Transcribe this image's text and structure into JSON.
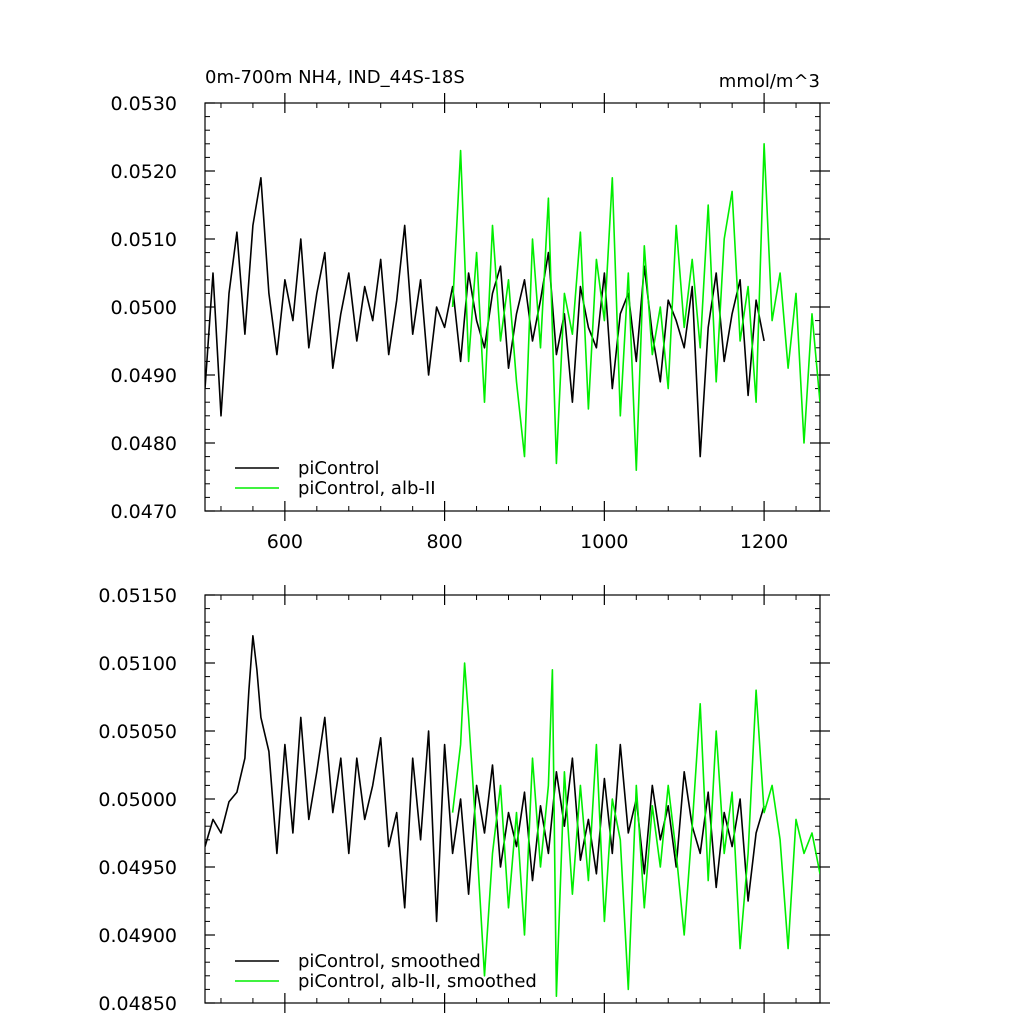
{
  "chart_data": [
    {
      "type": "line",
      "title": "0m-700m NH4, IND_44S-18S",
      "units": "mmol/m^3",
      "xlim": [
        500,
        1270
      ],
      "ylim": [
        0.047,
        0.053
      ],
      "xticks": [
        600,
        800,
        1000,
        1200
      ],
      "xtick_labels": [
        "600",
        "800",
        "1000",
        "1200"
      ],
      "yticks": [
        0.047,
        0.048,
        0.049,
        0.05,
        0.051,
        0.052,
        0.053
      ],
      "ytick_labels": [
        "0.0470",
        "0.0480",
        "0.0490",
        "0.0500",
        "0.0510",
        "0.0520",
        "0.0530"
      ],
      "legend_position": "bottom-left",
      "series": [
        {
          "name": "piControl",
          "color": "#000000",
          "x": [
            500,
            510,
            520,
            530,
            540,
            550,
            560,
            570,
            580,
            590,
            600,
            610,
            620,
            630,
            640,
            650,
            660,
            670,
            680,
            690,
            700,
            710,
            720,
            730,
            740,
            750,
            760,
            770,
            780,
            790,
            800,
            810,
            820,
            830,
            840,
            850,
            860,
            870,
            880,
            890,
            900,
            910,
            920,
            930,
            940,
            950,
            960,
            970,
            980,
            990,
            1000,
            1010,
            1020,
            1030,
            1040,
            1050,
            1060,
            1070,
            1080,
            1090,
            1100,
            1110,
            1120,
            1130,
            1140,
            1150,
            1160,
            1170,
            1180,
            1190,
            1200
          ],
          "y": [
            0.0488,
            0.0505,
            0.0484,
            0.0502,
            0.0511,
            0.0496,
            0.0512,
            0.0519,
            0.0502,
            0.0493,
            0.0504,
            0.0498,
            0.051,
            0.0494,
            0.0502,
            0.0508,
            0.0491,
            0.0499,
            0.0505,
            0.0495,
            0.0503,
            0.0498,
            0.0507,
            0.0493,
            0.0501,
            0.0512,
            0.0496,
            0.0504,
            0.049,
            0.05,
            0.0497,
            0.0503,
            0.0492,
            0.0505,
            0.0498,
            0.0494,
            0.0502,
            0.0506,
            0.0491,
            0.0499,
            0.0504,
            0.0495,
            0.0501,
            0.0508,
            0.0493,
            0.0499,
            0.0486,
            0.0503,
            0.0497,
            0.0494,
            0.0505,
            0.0488,
            0.0499,
            0.0502,
            0.0492,
            0.0506,
            0.0496,
            0.0489,
            0.0501,
            0.0498,
            0.0494,
            0.0503,
            0.0478,
            0.0497,
            0.0505,
            0.0492,
            0.0499,
            0.0504,
            0.0487,
            0.0501,
            0.0495
          ]
        },
        {
          "name": "piControl, alb-II",
          "color": "#00ee00",
          "x": [
            810,
            820,
            830,
            840,
            850,
            860,
            870,
            880,
            890,
            900,
            910,
            920,
            930,
            940,
            950,
            960,
            970,
            980,
            990,
            1000,
            1010,
            1020,
            1030,
            1040,
            1050,
            1060,
            1070,
            1080,
            1090,
            1100,
            1110,
            1120,
            1130,
            1140,
            1150,
            1160,
            1170,
            1180,
            1190,
            1200,
            1210,
            1220,
            1230,
            1240,
            1250,
            1260,
            1270
          ],
          "y": [
            0.05,
            0.0523,
            0.0492,
            0.0508,
            0.0486,
            0.0512,
            0.0495,
            0.0504,
            0.0489,
            0.0478,
            0.051,
            0.0494,
            0.0516,
            0.0477,
            0.0502,
            0.0496,
            0.0511,
            0.0485,
            0.0507,
            0.0498,
            0.0519,
            0.0484,
            0.0505,
            0.0476,
            0.0509,
            0.0493,
            0.05,
            0.0488,
            0.0512,
            0.0497,
            0.0507,
            0.0494,
            0.0515,
            0.0489,
            0.051,
            0.0517,
            0.0495,
            0.0503,
            0.0486,
            0.0524,
            0.0498,
            0.0505,
            0.0491,
            0.0502,
            0.048,
            0.0499,
            0.0486
          ]
        }
      ]
    },
    {
      "type": "line",
      "xlim": [
        500,
        1270
      ],
      "ylim": [
        0.0485,
        0.0515
      ],
      "xticks": [
        600,
        800,
        1000,
        1200
      ],
      "yticks": [
        0.0485,
        0.049,
        0.0495,
        0.05,
        0.0505,
        0.051,
        0.0515
      ],
      "ytick_labels": [
        "0.04850",
        "0.04900",
        "0.04950",
        "0.05000",
        "0.05050",
        "0.05100",
        "0.05150"
      ],
      "legend_position": "bottom-left",
      "series": [
        {
          "name": "piControl, smoothed",
          "color": "#000000",
          "x": [
            500,
            510,
            520,
            530,
            540,
            550,
            555,
            560,
            565,
            570,
            580,
            590,
            600,
            610,
            620,
            630,
            640,
            650,
            660,
            670,
            680,
            690,
            700,
            710,
            720,
            730,
            740,
            750,
            760,
            770,
            780,
            790,
            800,
            810,
            820,
            830,
            840,
            850,
            860,
            870,
            880,
            890,
            900,
            910,
            920,
            930,
            940,
            950,
            960,
            970,
            980,
            990,
            1000,
            1010,
            1020,
            1030,
            1040,
            1050,
            1060,
            1070,
            1080,
            1090,
            1100,
            1110,
            1120,
            1130,
            1140,
            1150,
            1160,
            1170,
            1180,
            1190,
            1200
          ],
          "y": [
            0.04965,
            0.04985,
            0.04975,
            0.04998,
            0.05005,
            0.0503,
            0.0508,
            0.0512,
            0.05095,
            0.0506,
            0.05035,
            0.0496,
            0.0504,
            0.04975,
            0.0506,
            0.04985,
            0.0502,
            0.0506,
            0.0499,
            0.0503,
            0.0496,
            0.0503,
            0.04985,
            0.0501,
            0.05045,
            0.04965,
            0.0499,
            0.0492,
            0.0503,
            0.0497,
            0.0505,
            0.0491,
            0.0504,
            0.0496,
            0.05,
            0.0493,
            0.0501,
            0.04975,
            0.05025,
            0.0495,
            0.0499,
            0.04965,
            0.05005,
            0.0494,
            0.04995,
            0.0496,
            0.0502,
            0.0498,
            0.0503,
            0.04955,
            0.04985,
            0.04945,
            0.05015,
            0.0496,
            0.0504,
            0.04975,
            0.05,
            0.04945,
            0.0501,
            0.0497,
            0.04995,
            0.0495,
            0.0502,
            0.0498,
            0.0496,
            0.05005,
            0.04935,
            0.0499,
            0.04965,
            0.05,
            0.04925,
            0.04975,
            0.04995
          ]
        },
        {
          "name": "piControl, alb-II, smoothed",
          "color": "#00ee00",
          "x": [
            810,
            820,
            825,
            830,
            840,
            850,
            860,
            870,
            880,
            890,
            900,
            910,
            920,
            930,
            935,
            940,
            950,
            960,
            970,
            980,
            990,
            1000,
            1010,
            1020,
            1030,
            1040,
            1050,
            1060,
            1070,
            1080,
            1090,
            1100,
            1110,
            1120,
            1130,
            1140,
            1150,
            1160,
            1170,
            1180,
            1190,
            1200,
            1210,
            1220,
            1230,
            1240,
            1250,
            1260,
            1270
          ],
          "y": [
            0.0499,
            0.0504,
            0.051,
            0.0506,
            0.0497,
            0.0487,
            0.0496,
            0.0501,
            0.0492,
            0.0499,
            0.049,
            0.0503,
            0.0495,
            0.0501,
            0.05095,
            0.04855,
            0.0502,
            0.0493,
            0.0501,
            0.0494,
            0.0504,
            0.0491,
            0.05,
            0.0497,
            0.0486,
            0.0501,
            0.0492,
            0.04995,
            0.0495,
            0.0501,
            0.0496,
            0.049,
            0.0498,
            0.0507,
            0.0494,
            0.0505,
            0.0496,
            0.05005,
            0.0489,
            0.0496,
            0.0508,
            0.0499,
            0.0501,
            0.0497,
            0.0489,
            0.04985,
            0.0496,
            0.04975,
            0.04945
          ]
        }
      ]
    }
  ]
}
